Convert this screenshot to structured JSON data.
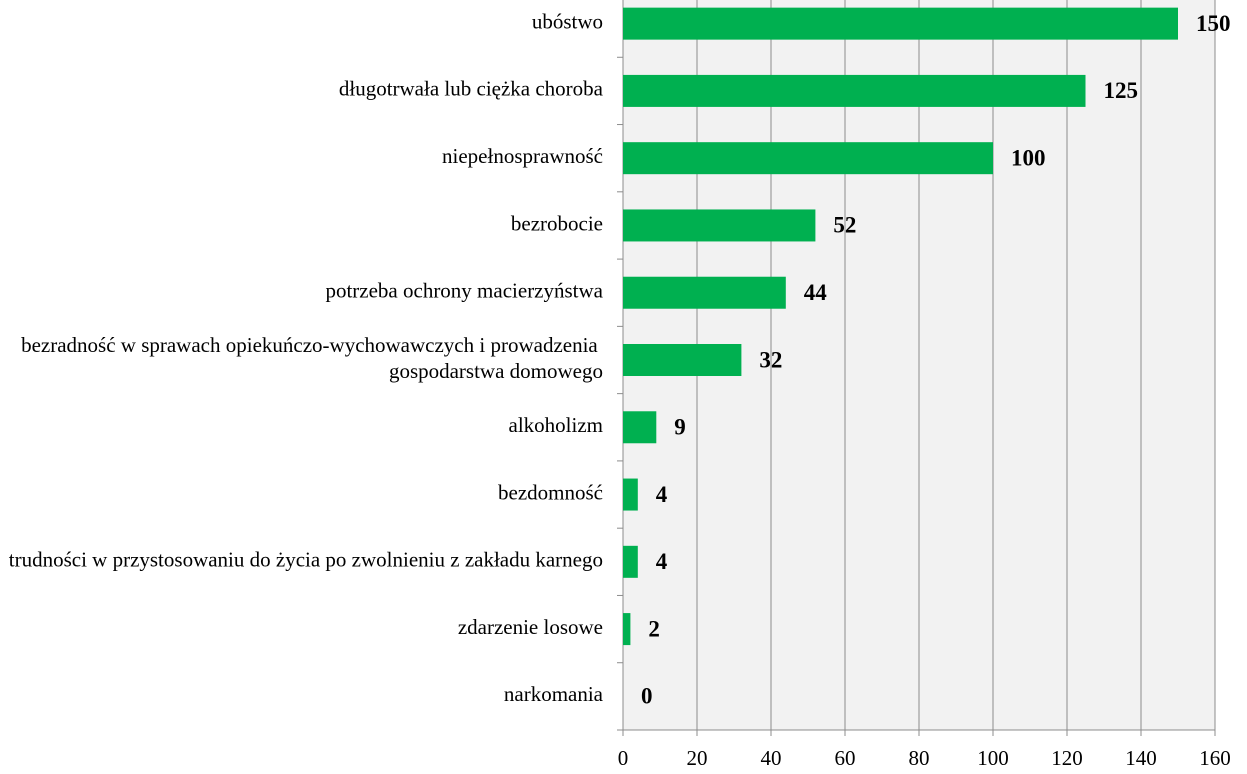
{
  "chart_data": {
    "type": "bar",
    "orientation": "horizontal",
    "categories": [
      "ubóstwo",
      "długotrwała lub ciężka choroba",
      "niepełnosprawność",
      "bezrobocie",
      "potrzeba ochrony macierzyństwa",
      "bezradność w sprawach opiekuńczo-wychowawczych i prowadzenia gospodarstwa domowego",
      "alkoholizm",
      "bezdomność",
      "trudności w przystosowaniu do życia po zwolnieniu z zakładu karnego",
      "zdarzenie losowe",
      "narkomania"
    ],
    "values": [
      150,
      125,
      100,
      52,
      44,
      32,
      9,
      4,
      4,
      2,
      0
    ],
    "color": "#00b050",
    "xlim": [
      0,
      160
    ],
    "xticks": [
      0,
      20,
      40,
      60,
      80,
      100,
      120,
      140,
      160
    ],
    "grid": true
  }
}
